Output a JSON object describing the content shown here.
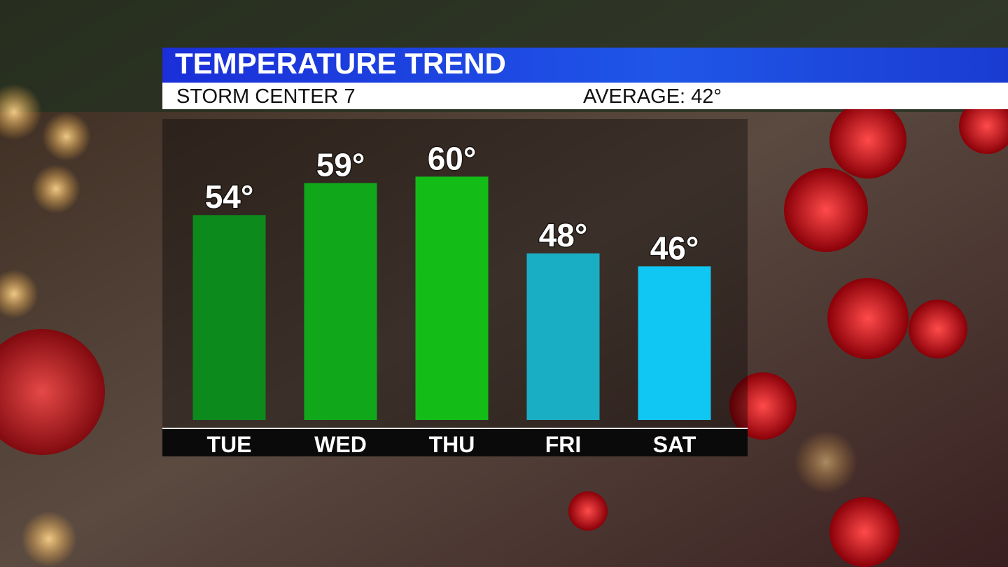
{
  "chart_data": {
    "type": "bar",
    "title": "TEMPERATURE TREND",
    "subtitle": "STORM CENTER 7",
    "average": "AVERAGE: 42°",
    "categories": [
      "TUE",
      "WED",
      "THU",
      "FRI",
      "SAT"
    ],
    "values": [
      54,
      59,
      60,
      48,
      46
    ],
    "value_labels": [
      "54°",
      "59°",
      "60°",
      "48°",
      "46°"
    ],
    "colors": [
      "#0c8a1c",
      "#10a81a",
      "#14bc18",
      "#1aaec4",
      "#10c6f2"
    ],
    "ylim": [
      22,
      69
    ]
  }
}
